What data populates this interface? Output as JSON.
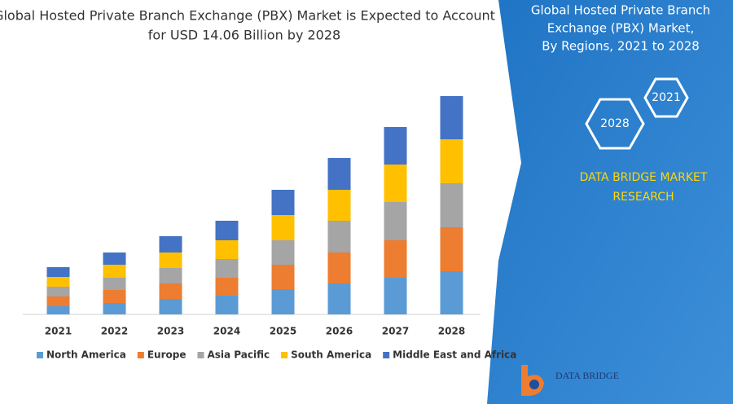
{
  "chart_data": {
    "type": "stacked_bar",
    "title": [
      "Global Hosted Private Branch Exchange (PBX) Market is Expected to Account",
      "for USD 14.06 Billion by 2028"
    ],
    "categories": [
      "2021",
      "2022",
      "2023",
      "2024",
      "2025",
      "2026",
      "2027",
      "2028"
    ],
    "series": [
      {
        "name": "North America",
        "color": "#5b9bd5",
        "values": [
          10,
          14,
          19,
          23,
          31,
          38,
          45,
          53
        ]
      },
      {
        "name": "Europe",
        "color": "#ed7d31",
        "values": [
          12,
          16,
          19,
          22,
          30,
          38,
          46,
          54
        ]
      },
      {
        "name": "Asia Pacific",
        "color": "#a5a5a5",
        "values": [
          12,
          15,
          19,
          23,
          30,
          39,
          47,
          54
        ]
      },
      {
        "name": "South America",
        "color": "#ffc000",
        "values": [
          12,
          16,
          19,
          23,
          31,
          38,
          46,
          54
        ]
      },
      {
        "name": "Middle East and Africa",
        "color": "#4472c4",
        "values": [
          12,
          15,
          20,
          24,
          31,
          39,
          46,
          53
        ]
      }
    ],
    "legend": "bottom"
  },
  "panel": {
    "title": [
      "Global Hosted Private Branch",
      "Exchange (PBX) Market,",
      "By Regions, 2021 to 2028"
    ],
    "hex_labels": [
      "2021",
      "2028"
    ],
    "brand": [
      "DATA BRIDGE MARKET",
      "RESEARCH"
    ],
    "logo": "DATA BRIDGE"
  }
}
